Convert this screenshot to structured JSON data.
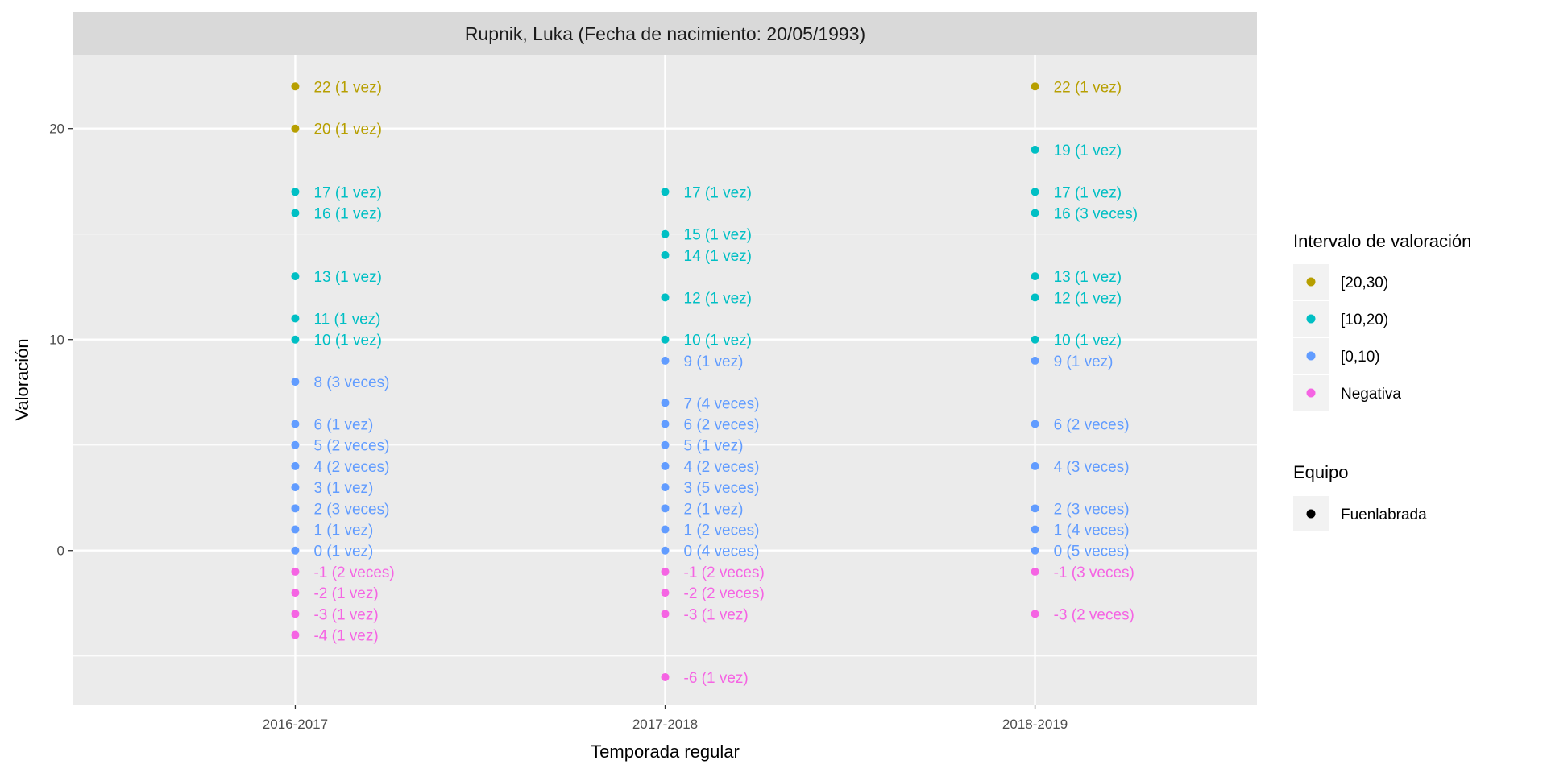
{
  "chart_data": {
    "type": "scatter",
    "title": "Rupnik, Luka (Fecha de nacimiento: 20/05/1993)",
    "xlabel": "Temporada regular",
    "ylabel": "Valoración",
    "categories": [
      "2016-2017",
      "2017-2018",
      "2018-2019"
    ],
    "ylim": [
      -7.3,
      23.5
    ],
    "yticks": [
      0,
      10,
      20
    ],
    "grid": true,
    "legend_position": "right",
    "color_legend": {
      "title": "Intervalo de valoración",
      "items": [
        {
          "label": "[20,30)",
          "color": "#b79f00"
        },
        {
          "label": "[10,20)",
          "color": "#00bfc4"
        },
        {
          "label": "[0,10)",
          "color": "#619cff"
        },
        {
          "label": "Negativa",
          "color": "#f564e3"
        }
      ]
    },
    "shape_legend": {
      "title": "Equipo",
      "items": [
        {
          "label": "Fuenlabrada",
          "color": "#000000"
        }
      ]
    },
    "series": [
      {
        "category": "2016-2017",
        "points": [
          {
            "y": 22,
            "label": "22 (1 vez)",
            "interval": "[20,30)"
          },
          {
            "y": 20,
            "label": "20 (1 vez)",
            "interval": "[20,30)"
          },
          {
            "y": 17,
            "label": "17 (1 vez)",
            "interval": "[10,20)"
          },
          {
            "y": 16,
            "label": "16 (1 vez)",
            "interval": "[10,20)"
          },
          {
            "y": 13,
            "label": "13 (1 vez)",
            "interval": "[10,20)"
          },
          {
            "y": 11,
            "label": "11 (1 vez)",
            "interval": "[10,20)"
          },
          {
            "y": 10,
            "label": "10 (1 vez)",
            "interval": "[10,20)"
          },
          {
            "y": 8,
            "label": "8 (3 veces)",
            "interval": "[0,10)"
          },
          {
            "y": 6,
            "label": "6 (1 vez)",
            "interval": "[0,10)"
          },
          {
            "y": 5,
            "label": "5 (2 veces)",
            "interval": "[0,10)"
          },
          {
            "y": 4,
            "label": "4 (2 veces)",
            "interval": "[0,10)"
          },
          {
            "y": 3,
            "label": "3 (1 vez)",
            "interval": "[0,10)"
          },
          {
            "y": 2,
            "label": "2 (3 veces)",
            "interval": "[0,10)"
          },
          {
            "y": 1,
            "label": "1 (1 vez)",
            "interval": "[0,10)"
          },
          {
            "y": 0,
            "label": "0 (1 vez)",
            "interval": "[0,10)"
          },
          {
            "y": -1,
            "label": "-1 (2 veces)",
            "interval": "Negativa"
          },
          {
            "y": -2,
            "label": "-2 (1 vez)",
            "interval": "Negativa"
          },
          {
            "y": -3,
            "label": "-3 (1 vez)",
            "interval": "Negativa"
          },
          {
            "y": -4,
            "label": "-4 (1 vez)",
            "interval": "Negativa"
          }
        ]
      },
      {
        "category": "2017-2018",
        "points": [
          {
            "y": 17,
            "label": "17 (1 vez)",
            "interval": "[10,20)"
          },
          {
            "y": 15,
            "label": "15 (1 vez)",
            "interval": "[10,20)"
          },
          {
            "y": 14,
            "label": "14 (1 vez)",
            "interval": "[10,20)"
          },
          {
            "y": 12,
            "label": "12 (1 vez)",
            "interval": "[10,20)"
          },
          {
            "y": 10,
            "label": "10 (1 vez)",
            "interval": "[10,20)"
          },
          {
            "y": 9,
            "label": "9 (1 vez)",
            "interval": "[0,10)"
          },
          {
            "y": 7,
            "label": "7 (4 veces)",
            "interval": "[0,10)"
          },
          {
            "y": 6,
            "label": "6 (2 veces)",
            "interval": "[0,10)"
          },
          {
            "y": 5,
            "label": "5 (1 vez)",
            "interval": "[0,10)"
          },
          {
            "y": 4,
            "label": "4 (2 veces)",
            "interval": "[0,10)"
          },
          {
            "y": 3,
            "label": "3 (5 veces)",
            "interval": "[0,10)"
          },
          {
            "y": 2,
            "label": "2 (1 vez)",
            "interval": "[0,10)"
          },
          {
            "y": 1,
            "label": "1 (2 veces)",
            "interval": "[0,10)"
          },
          {
            "y": 0,
            "label": "0 (4 veces)",
            "interval": "[0,10)"
          },
          {
            "y": -1,
            "label": "-1 (2 veces)",
            "interval": "Negativa"
          },
          {
            "y": -2,
            "label": "-2 (2 veces)",
            "interval": "Negativa"
          },
          {
            "y": -3,
            "label": "-3 (1 vez)",
            "interval": "Negativa"
          },
          {
            "y": -6,
            "label": "-6 (1 vez)",
            "interval": "Negativa"
          }
        ]
      },
      {
        "category": "2018-2019",
        "points": [
          {
            "y": 22,
            "label": "22 (1 vez)",
            "interval": "[20,30)"
          },
          {
            "y": 19,
            "label": "19 (1 vez)",
            "interval": "[10,20)"
          },
          {
            "y": 17,
            "label": "17 (1 vez)",
            "interval": "[10,20)"
          },
          {
            "y": 16,
            "label": "16 (3 veces)",
            "interval": "[10,20)"
          },
          {
            "y": 13,
            "label": "13 (1 vez)",
            "interval": "[10,20)"
          },
          {
            "y": 12,
            "label": "12 (1 vez)",
            "interval": "[10,20)"
          },
          {
            "y": 10,
            "label": "10 (1 vez)",
            "interval": "[10,20)"
          },
          {
            "y": 9,
            "label": "9 (1 vez)",
            "interval": "[0,10)"
          },
          {
            "y": 6,
            "label": "6 (2 veces)",
            "interval": "[0,10)"
          },
          {
            "y": 4,
            "label": "4 (3 veces)",
            "interval": "[0,10)"
          },
          {
            "y": 2,
            "label": "2 (3 veces)",
            "interval": "[0,10)"
          },
          {
            "y": 1,
            "label": "1 (4 veces)",
            "interval": "[0,10)"
          },
          {
            "y": 0,
            "label": "0 (5 veces)",
            "interval": "[0,10)"
          },
          {
            "y": -1,
            "label": "-1 (3 veces)",
            "interval": "Negativa"
          },
          {
            "y": -3,
            "label": "-3 (2 veces)",
            "interval": "Negativa"
          }
        ]
      }
    ]
  }
}
